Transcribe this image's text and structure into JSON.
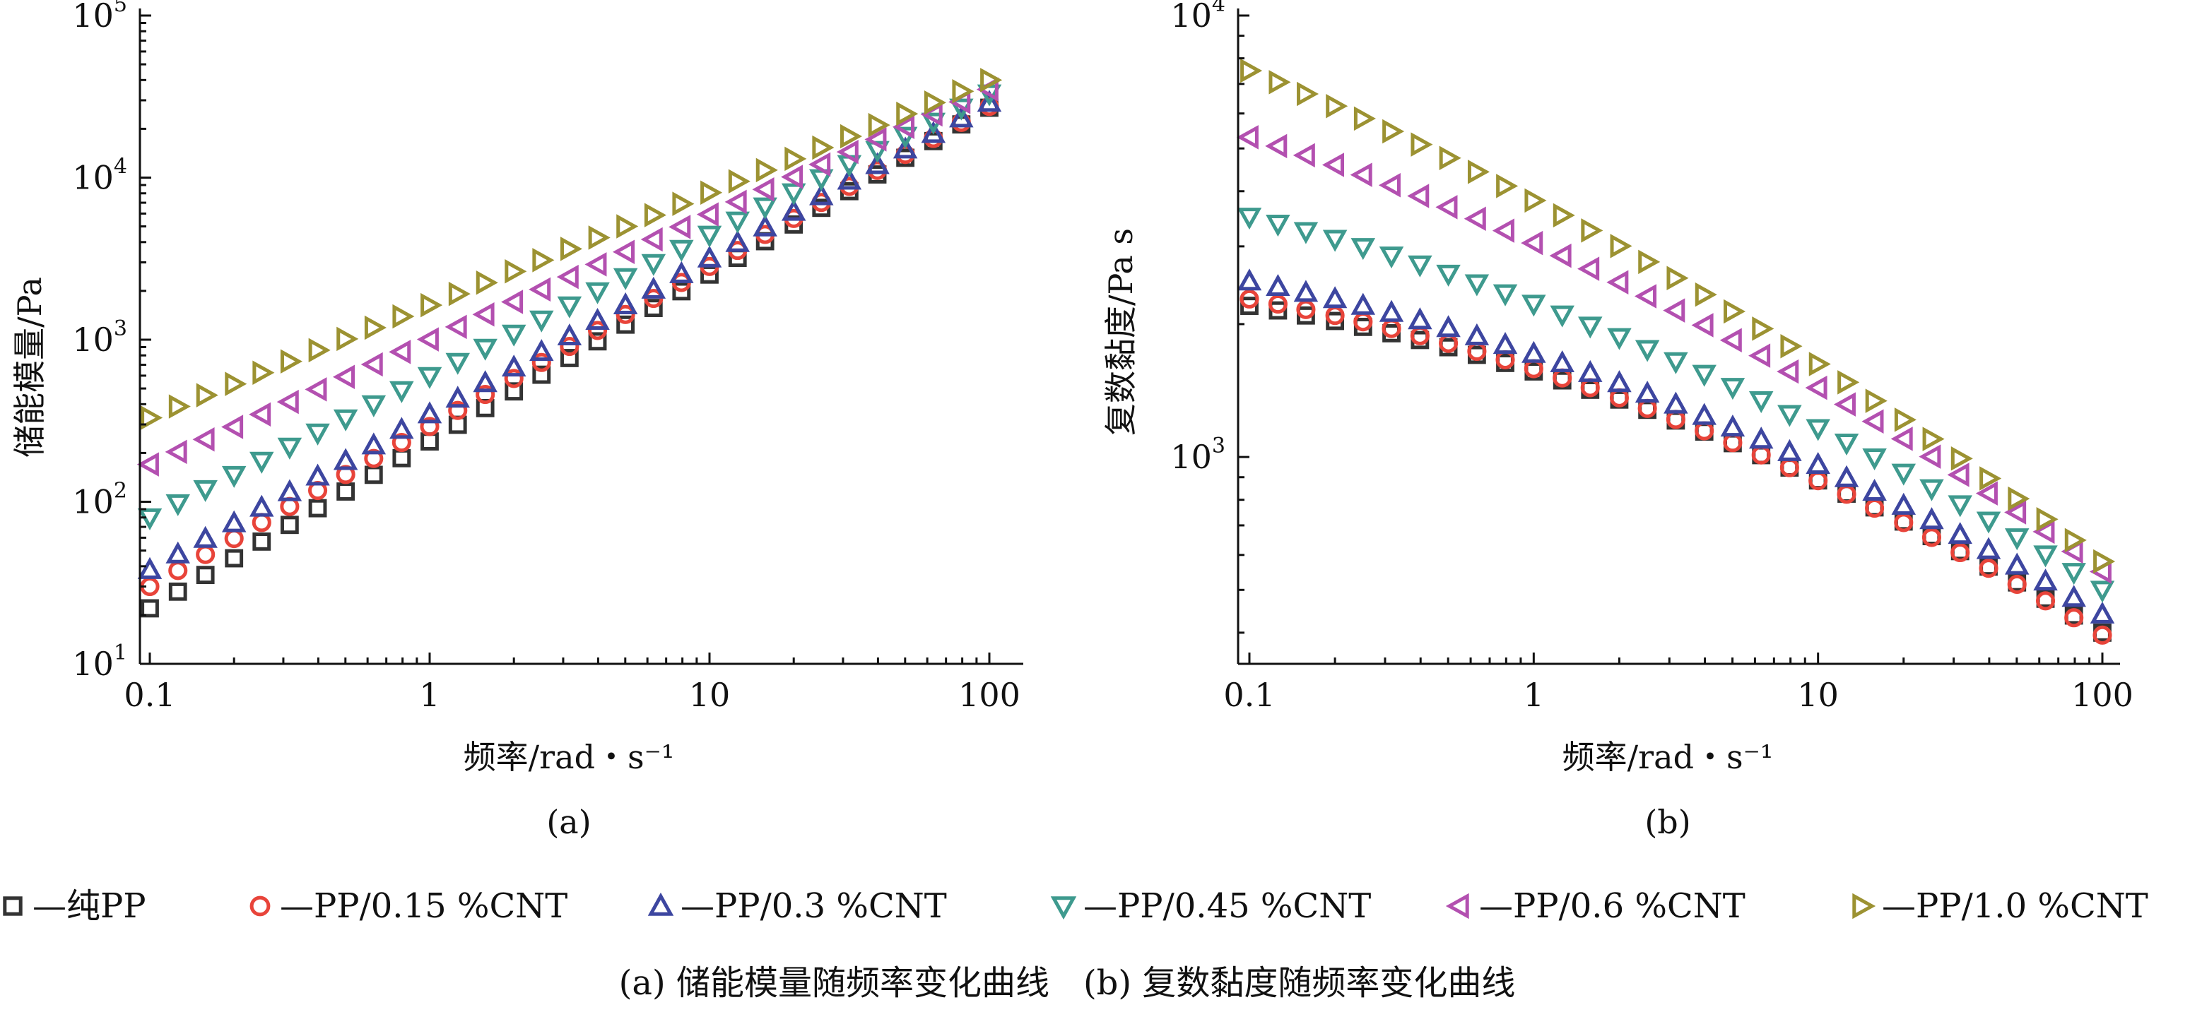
{
  "caption": "(a) 储能模量随频率变化曲线　(b) 复数黏度随频率变化曲线",
  "series_styles": [
    {
      "marker": "square",
      "color": "#333333",
      "legend": "—纯PP"
    },
    {
      "marker": "circle",
      "color": "#e8443a",
      "legend": "—PP/0.15 %CNT"
    },
    {
      "marker": "triangle-up",
      "color": "#3d46a0",
      "legend": "—PP/0.3 %CNT"
    },
    {
      "marker": "triangle-down",
      "color": "#3e9a8e",
      "legend": "—PP/0.45 %CNT"
    },
    {
      "marker": "triangle-left",
      "color": "#b350b0",
      "legend": "—PP/0.6 %CNT"
    },
    {
      "marker": "triangle-right",
      "color": "#9c9232",
      "legend": "—PP/1.0 %CNT"
    }
  ],
  "chart_data": [
    {
      "type": "scatter",
      "panel_label": "(a)",
      "xlabel": "频率/rad・s⁻¹",
      "ylabel": "储能模量/Pa",
      "xscale": "log",
      "yscale": "log",
      "xlim": [
        0.1,
        100
      ],
      "ylim": [
        10,
        100000
      ],
      "x_ticks": [
        0.1,
        1,
        10,
        100
      ],
      "x_tick_labels": [
        "0.1",
        "1",
        "10",
        "100"
      ],
      "y_ticks": [
        10,
        100,
        1000,
        10000,
        100000
      ],
      "y_tick_base": [
        "10",
        "10",
        "10",
        "10",
        "10"
      ],
      "y_tick_exp": [
        "1",
        "2",
        "3",
        "4",
        "5"
      ],
      "x": [
        0.1,
        0.126,
        0.158,
        0.2,
        0.251,
        0.316,
        0.398,
        0.501,
        0.631,
        0.794,
        1,
        1.26,
        1.58,
        2,
        2.51,
        3.16,
        3.98,
        5.01,
        6.31,
        7.94,
        10,
        12.6,
        15.8,
        20,
        25.1,
        31.6,
        39.8,
        50.1,
        63.1,
        79.4,
        100
      ],
      "series": [
        {
          "name": "纯PP",
          "start": 22,
          "end": 27000
        },
        {
          "name": "PP/0.15 %CNT",
          "start": 30,
          "end": 27500
        },
        {
          "name": "PP/0.3 %CNT",
          "start": 38,
          "end": 29000
        },
        {
          "name": "PP/0.45 %CNT",
          "start": 80,
          "end": 33000
        },
        {
          "name": "PP/0.6 %CNT",
          "start": 170,
          "end": 35000
        },
        {
          "name": "PP/1.0 %CNT",
          "start": 330,
          "end": 40000
        }
      ]
    },
    {
      "type": "scatter",
      "panel_label": "(b)",
      "xlabel": "频率/rad・s⁻¹",
      "ylabel": "复数黏度/Pa s",
      "xscale": "log",
      "yscale": "log",
      "xlim": [
        0.1,
        100
      ],
      "ylim": [
        340,
        10000
      ],
      "x_ticks": [
        0.1,
        1,
        10,
        100
      ],
      "x_tick_labels": [
        "0.1",
        "1",
        "10",
        "100"
      ],
      "y_ticks": [
        1000,
        10000
      ],
      "y_tick_base": [
        "10",
        "10"
      ],
      "y_tick_exp": [
        "3",
        "4"
      ],
      "x": [
        0.1,
        0.126,
        0.158,
        0.2,
        0.251,
        0.316,
        0.398,
        0.501,
        0.631,
        0.794,
        1,
        1.26,
        1.58,
        2,
        2.51,
        3.16,
        3.98,
        5.01,
        6.31,
        7.94,
        10,
        12.6,
        15.8,
        20,
        25.1,
        31.6,
        39.8,
        50.1,
        63.1,
        79.4,
        100
      ],
      "series": [
        {
          "name": "纯PP",
          "start": 2200,
          "mid": 1560,
          "end": 400
        },
        {
          "name": "PP/0.15 %CNT",
          "start": 2280,
          "mid": 1560,
          "end": 395
        },
        {
          "name": "PP/0.3 %CNT",
          "start": 2500,
          "mid": 1650,
          "end": 440
        },
        {
          "name": "PP/0.45 %CNT",
          "start": 3500,
          "mid": 2050,
          "end": 500
        },
        {
          "name": "PP/0.6 %CNT",
          "start": 5300,
          "mid": 2700,
          "end": 550
        },
        {
          "name": "PP/1.0 %CNT",
          "start": 7500,
          "mid": 3100,
          "end": 580
        }
      ]
    }
  ]
}
